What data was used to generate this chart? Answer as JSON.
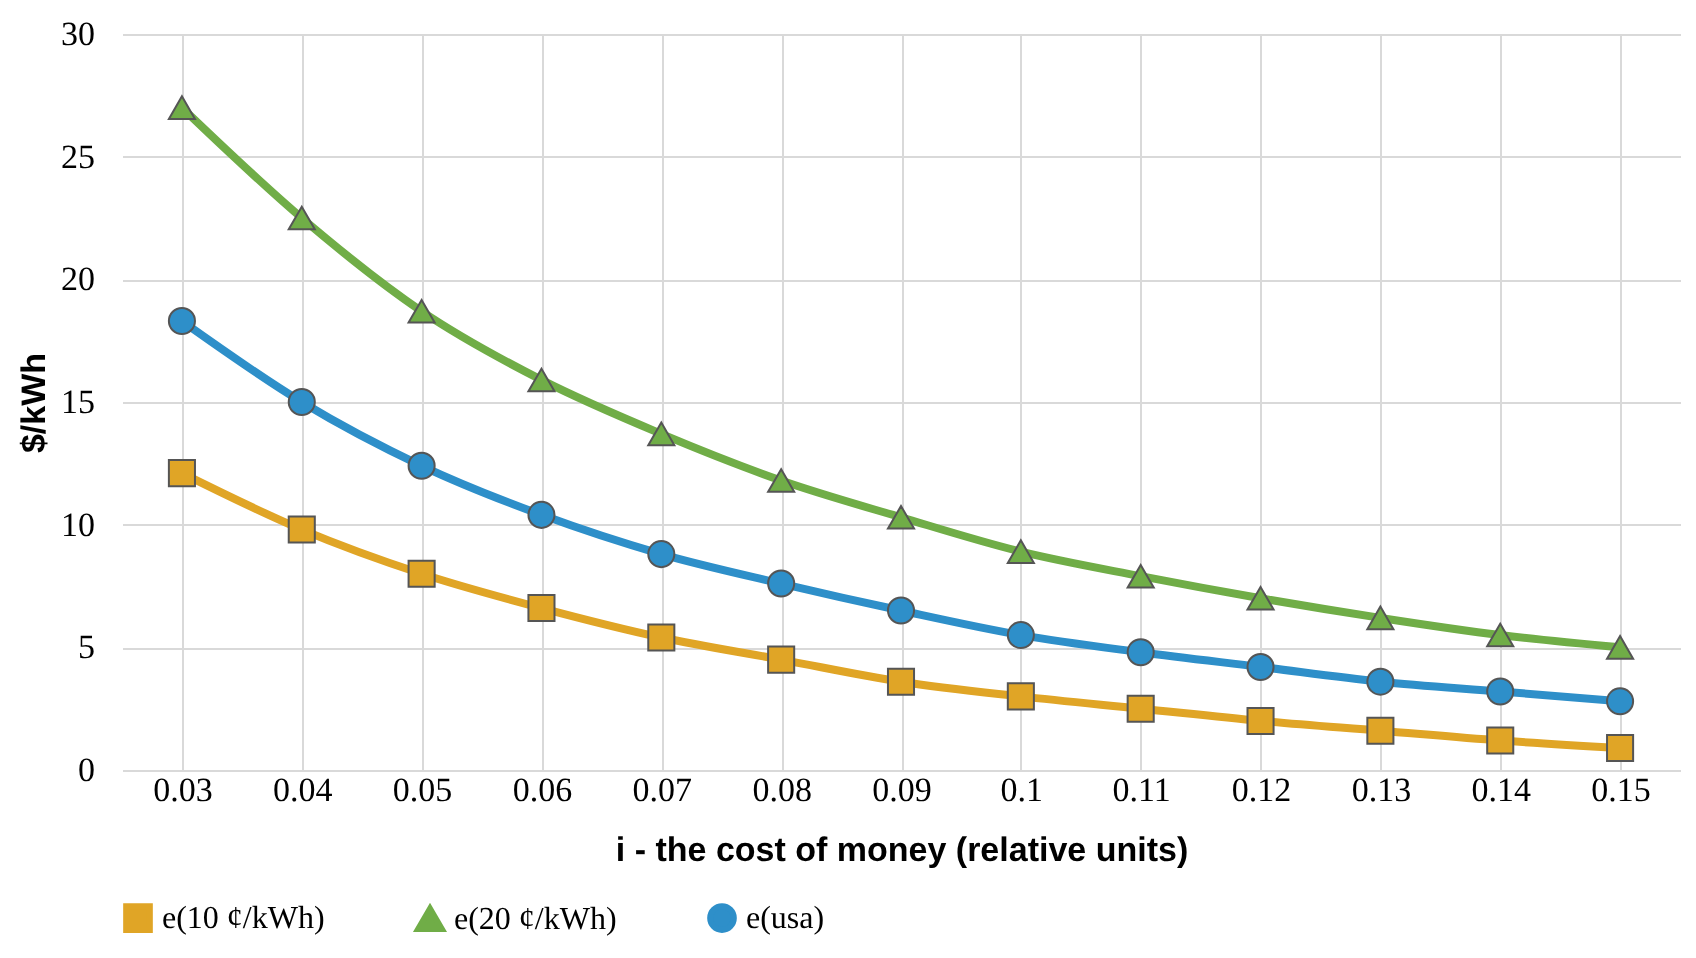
{
  "chart_data": {
    "type": "line",
    "xlabel": "i - the cost of money (relative units)",
    "ylabel": "$/kWh",
    "categories": [
      "0.03",
      "0.04",
      "0.05",
      "0.06",
      "0.07",
      "0.08",
      "0.09",
      "0.1",
      "0.11",
      "0.12",
      "0.13",
      "0.14",
      "0.15"
    ],
    "series": [
      {
        "name": "e(10 ¢/kWh)",
        "color": "#e0a526",
        "marker": "square",
        "values": [
          12.1,
          9.8,
          8.0,
          6.6,
          5.4,
          4.5,
          3.6,
          3.0,
          2.5,
          2.0,
          1.6,
          1.2,
          0.9
        ]
      },
      {
        "name": "e(20 ¢/kWh)",
        "color": "#70ad47",
        "marker": "triangle",
        "values": [
          27.0,
          22.5,
          18.7,
          15.9,
          13.7,
          11.8,
          10.3,
          8.9,
          7.9,
          7.0,
          6.2,
          5.5,
          5.0
        ]
      },
      {
        "name": "e(usa)",
        "color": "#2e8fc9",
        "marker": "circle",
        "values": [
          18.3,
          15.0,
          12.4,
          10.4,
          8.8,
          7.6,
          6.5,
          5.5,
          4.8,
          4.2,
          3.6,
          3.2,
          2.8
        ]
      }
    ],
    "ylim": [
      0,
      30
    ],
    "yticks": [
      0,
      5,
      10,
      15,
      20,
      25,
      30
    ],
    "grid": true,
    "legend": "bottom",
    "line_style": "solid"
  }
}
